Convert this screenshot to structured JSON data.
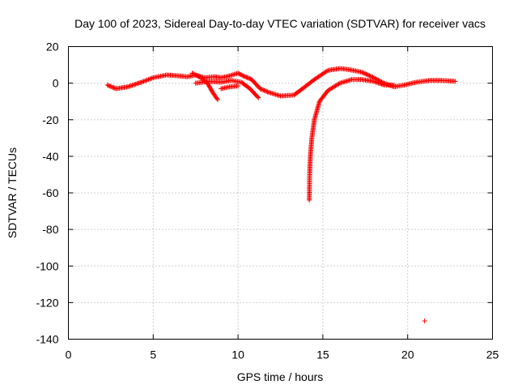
{
  "chart_data": {
    "type": "scatter",
    "title": "Day 100 of 2023, Sidereal Day-to-day VTEC variation (SDTVAR) for receiver vacs",
    "xlabel": "GPS time / hours",
    "ylabel": "SDTVAR / TECUs",
    "xlim": [
      0,
      25
    ],
    "ylim": [
      -140,
      20
    ],
    "xticks": [
      0,
      5,
      10,
      15,
      20,
      25
    ],
    "yticks": [
      20,
      0,
      -20,
      -40,
      -60,
      -80,
      -100,
      -120,
      -140
    ],
    "grid": true,
    "marker": "+",
    "color": "#ff0000",
    "series": [
      {
        "name": "SDTVAR",
        "segments": [
          {
            "points": [
              [
                2.3,
                -1
              ],
              [
                2.8,
                -3
              ],
              [
                3.5,
                -2
              ],
              [
                4.3,
                0.5
              ],
              [
                5,
                3
              ],
              [
                5.8,
                4.5
              ],
              [
                6.5,
                4
              ],
              [
                7,
                3.5
              ],
              [
                7.5,
                4.5
              ],
              [
                8,
                3
              ],
              [
                8.6,
                3.5
              ],
              [
                9,
                3
              ],
              [
                9.5,
                4
              ],
              [
                10,
                5.5
              ],
              [
                10.3,
                4
              ],
              [
                10.8,
                2
              ],
              [
                11.3,
                -3
              ],
              [
                11.8,
                -5
              ],
              [
                12.5,
                -7
              ],
              [
                13.3,
                -6.5
              ],
              [
                13.8,
                -3
              ],
              [
                14.5,
                2
              ],
              [
                15.3,
                7
              ],
              [
                16,
                8
              ],
              [
                16.5,
                7.5
              ],
              [
                17.3,
                6
              ],
              [
                18,
                3
              ],
              [
                18.6,
                0
              ],
              [
                19.2,
                -2
              ],
              [
                19.8,
                -1
              ],
              [
                20.5,
                0.5
              ],
              [
                21.3,
                1.5
              ],
              [
                22,
                1.5
              ],
              [
                22.8,
                1
              ]
            ]
          },
          {
            "points": [
              [
                7.3,
                5.5
              ],
              [
                7.8,
                3
              ],
              [
                8.2,
                0
              ],
              [
                8.5,
                -5
              ],
              [
                8.8,
                -9
              ]
            ]
          },
          {
            "points": [
              [
                7.5,
                0
              ],
              [
                8.3,
                1
              ],
              [
                9,
                0.5
              ],
              [
                9.6,
                1.5
              ],
              [
                10.2,
                0.5
              ],
              [
                10.7,
                -3
              ],
              [
                11.2,
                -8
              ]
            ]
          },
          {
            "points": [
              [
                9,
                -3
              ],
              [
                9.5,
                -2
              ],
              [
                10,
                -1.5
              ]
            ]
          },
          {
            "points": [
              [
                14.2,
                -64
              ],
              [
                14.22,
                -50
              ],
              [
                14.26,
                -40
              ],
              [
                14.35,
                -30
              ],
              [
                14.5,
                -20
              ],
              [
                14.8,
                -10
              ],
              [
                15.3,
                -4
              ],
              [
                16,
                0
              ],
              [
                16.7,
                2
              ],
              [
                17.3,
                2
              ],
              [
                18,
                1
              ],
              [
                18.6,
                -1
              ],
              [
                19.2,
                -1
              ]
            ]
          }
        ],
        "outliers": [
          [
            21,
            -130
          ]
        ]
      }
    ]
  }
}
